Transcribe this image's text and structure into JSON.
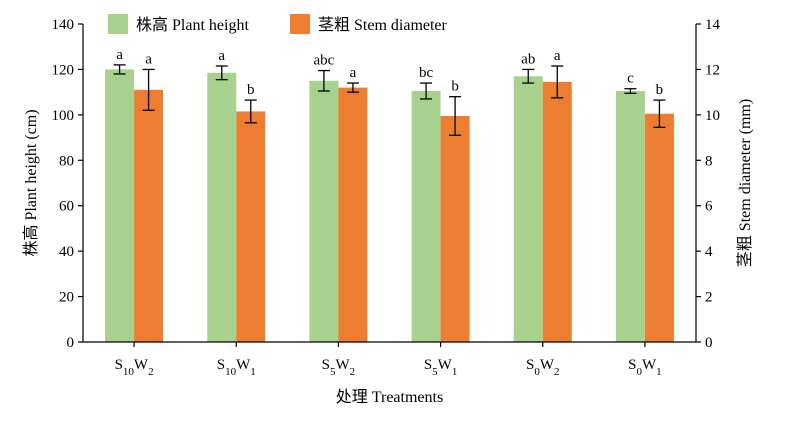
{
  "chart_data": {
    "type": "bar",
    "categories": [
      {
        "base": "S",
        "sub1": "10",
        "mid": "W",
        "sub2": "2"
      },
      {
        "base": "S",
        "sub1": "10",
        "mid": "W",
        "sub2": "1"
      },
      {
        "base": "S",
        "sub1": "5",
        "mid": "W",
        "sub2": "2"
      },
      {
        "base": "S",
        "sub1": "5",
        "mid": "W",
        "sub2": "1"
      },
      {
        "base": "S",
        "sub1": "0",
        "mid": "W",
        "sub2": "2"
      },
      {
        "base": "S",
        "sub1": "0",
        "mid": "W",
        "sub2": "1"
      }
    ],
    "xlabel": "处理 Treatments",
    "ylabel_left": "株高 Plant height (cm)",
    "ylabel_right": "茎粗 Stem diameter (mm)",
    "ylim_left": [
      0,
      140
    ],
    "yticks_left": [
      "0",
      "20",
      "40",
      "60",
      "80",
      "100",
      "120",
      "140"
    ],
    "ylim_right": [
      0,
      14
    ],
    "yticks_right": [
      "0",
      "2",
      "4",
      "6",
      "8",
      "10",
      "12",
      "14"
    ],
    "series": [
      {
        "name": "株高 Plant height",
        "axis": "left",
        "color": "#a9d18e",
        "values": [
          120,
          118.5,
          115,
          110.5,
          117,
          110.5
        ],
        "errors": [
          2,
          3,
          4.5,
          3.5,
          3,
          1
        ],
        "significance": [
          "a",
          "a",
          "abc",
          "bc",
          "ab",
          "c"
        ]
      },
      {
        "name": "茎粗 Stem diameter",
        "axis": "right",
        "color": "#ed7d31",
        "values": [
          11.1,
          10.15,
          11.2,
          9.95,
          11.45,
          10.05
        ],
        "errors": [
          0.9,
          0.5,
          0.2,
          0.85,
          0.7,
          0.6
        ],
        "significance": [
          "a",
          "b",
          "a",
          "b",
          "a",
          "b"
        ]
      }
    ],
    "legend_position": "top-left",
    "grid": false
  }
}
